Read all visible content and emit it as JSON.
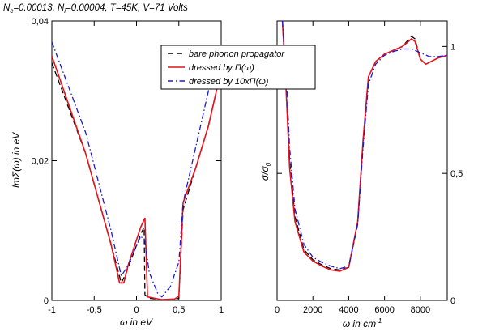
{
  "figure_title": "N_c=0.00013, N_i=0.00004, T=45K, V=71 Volts",
  "legend": {
    "items": [
      {
        "label": "bare phonon propagator",
        "color": "#000000",
        "dash": "dashed"
      },
      {
        "label": "dressed by Π(ω)",
        "color": "#e8101a",
        "dash": "solid"
      },
      {
        "label": "dressed by 10xΠ(ω)",
        "color": "#1a1adb",
        "dash": "dashdot"
      }
    ]
  },
  "chart_data": [
    {
      "type": "line",
      "xlabel": "ω in eV",
      "ylabel": "ImΣ(ω) in eV",
      "xlim": [
        -1,
        1
      ],
      "ylim": [
        0,
        0.04
      ],
      "xticks": [
        -1,
        -0.5,
        0,
        0.5,
        1
      ],
      "xtick_labels": [
        "-1",
        "-0,5",
        "0",
        "0,5",
        "1"
      ],
      "yticks": [
        0,
        0.02,
        0.04
      ],
      "ytick_labels": [
        "0",
        "0,02",
        "0,04"
      ],
      "yaxis_side": "left",
      "series": [
        {
          "name": "bare phonon propagator",
          "color": "#000000",
          "dash": "dashed",
          "x": [
            -1,
            -0.6,
            -0.3,
            -0.18,
            -0.12,
            0.05,
            0.09,
            0.1,
            0.15,
            0.3,
            0.45,
            0.5,
            0.55,
            0.7,
            0.85,
            1.0
          ],
          "y": [
            0.034,
            0.021,
            0.008,
            0.0025,
            0.004,
            0.0095,
            0.0105,
            0.0008,
            0.0003,
            0.0001,
            0.0001,
            0.0003,
            0.013,
            0.019,
            0.025,
            0.033
          ]
        },
        {
          "name": "dressed by Π(ω)",
          "color": "#e8101a",
          "dash": "solid",
          "x": [
            -1,
            -0.6,
            -0.3,
            -0.2,
            -0.15,
            -0.1,
            0.05,
            0.1,
            0.13,
            0.3,
            0.45,
            0.5,
            0.55,
            0.7,
            0.85,
            1.0
          ],
          "y": [
            0.035,
            0.021,
            0.008,
            0.0025,
            0.0025,
            0.005,
            0.0105,
            0.0118,
            0.0005,
            0.0001,
            0.0002,
            0.0006,
            0.014,
            0.019,
            0.025,
            0.033
          ]
        },
        {
          "name": "dressed by 10xΠ(ω)",
          "color": "#1a1adb",
          "dash": "dashdot",
          "x": [
            -1,
            -0.6,
            -0.3,
            -0.18,
            -0.1,
            0.05,
            0.1,
            0.15,
            0.25,
            0.3,
            0.4,
            0.5,
            0.55,
            0.7,
            0.85,
            1.0
          ],
          "y": [
            0.037,
            0.024,
            0.01,
            0.0035,
            0.005,
            0.0092,
            0.0085,
            0.004,
            0.001,
            0.0005,
            0.002,
            0.0055,
            0.014,
            0.022,
            0.03,
            0.036
          ]
        }
      ]
    },
    {
      "type": "line",
      "xlabel": "ω in cm^-1",
      "ylabel": "σ/σ_0",
      "xlim": [
        0,
        9500
      ],
      "ylim": [
        0,
        1.1
      ],
      "xticks": [
        0,
        2000,
        4000,
        6000,
        8000
      ],
      "xtick_labels": [
        "0",
        "2000",
        "4000",
        "6000",
        "8000"
      ],
      "yticks": [
        0,
        0.5,
        1
      ],
      "ytick_labels": [
        "0",
        "0,5",
        "1"
      ],
      "yaxis_side": "right",
      "series": [
        {
          "name": "bare phonon propagator",
          "color": "#000000",
          "dash": "dashed",
          "x": [
            300,
            500,
            700,
            1000,
            1500,
            2000,
            2500,
            3000,
            3500,
            4000,
            4500,
            4800,
            5100,
            5500,
            6000,
            6500,
            7000,
            7500,
            7700,
            8000,
            8300,
            9000,
            9500
          ],
          "y": [
            1.1,
            0.85,
            0.55,
            0.33,
            0.2,
            0.16,
            0.14,
            0.125,
            0.12,
            0.13,
            0.3,
            0.62,
            0.88,
            0.94,
            0.97,
            0.985,
            1.0,
            1.04,
            1.03,
            0.95,
            0.93,
            0.955,
            0.965
          ]
        },
        {
          "name": "dressed by Π(ω)",
          "color": "#e8101a",
          "dash": "solid",
          "x": [
            300,
            500,
            700,
            1000,
            1500,
            2000,
            2500,
            3000,
            3500,
            4000,
            4500,
            4800,
            5100,
            5500,
            6000,
            6500,
            7000,
            7500,
            7700,
            8000,
            8300,
            9000,
            9500
          ],
          "y": [
            1.1,
            0.83,
            0.52,
            0.31,
            0.19,
            0.155,
            0.135,
            0.12,
            0.115,
            0.13,
            0.31,
            0.63,
            0.88,
            0.94,
            0.97,
            0.985,
            1.0,
            1.03,
            1.02,
            0.95,
            0.93,
            0.955,
            0.965
          ]
        },
        {
          "name": "dressed by 10xΠ(ω)",
          "color": "#1a1adb",
          "dash": "dashdot",
          "x": [
            300,
            500,
            700,
            1000,
            1500,
            2000,
            2500,
            3000,
            3500,
            4000,
            4500,
            4800,
            5100,
            5500,
            6000,
            6500,
            7000,
            7500,
            8000,
            8500,
            9000,
            9500
          ],
          "y": [
            1.1,
            0.9,
            0.6,
            0.36,
            0.22,
            0.17,
            0.15,
            0.135,
            0.125,
            0.135,
            0.3,
            0.6,
            0.85,
            0.93,
            0.965,
            0.98,
            0.99,
            0.99,
            0.975,
            0.96,
            0.96,
            0.965
          ]
        }
      ]
    }
  ]
}
